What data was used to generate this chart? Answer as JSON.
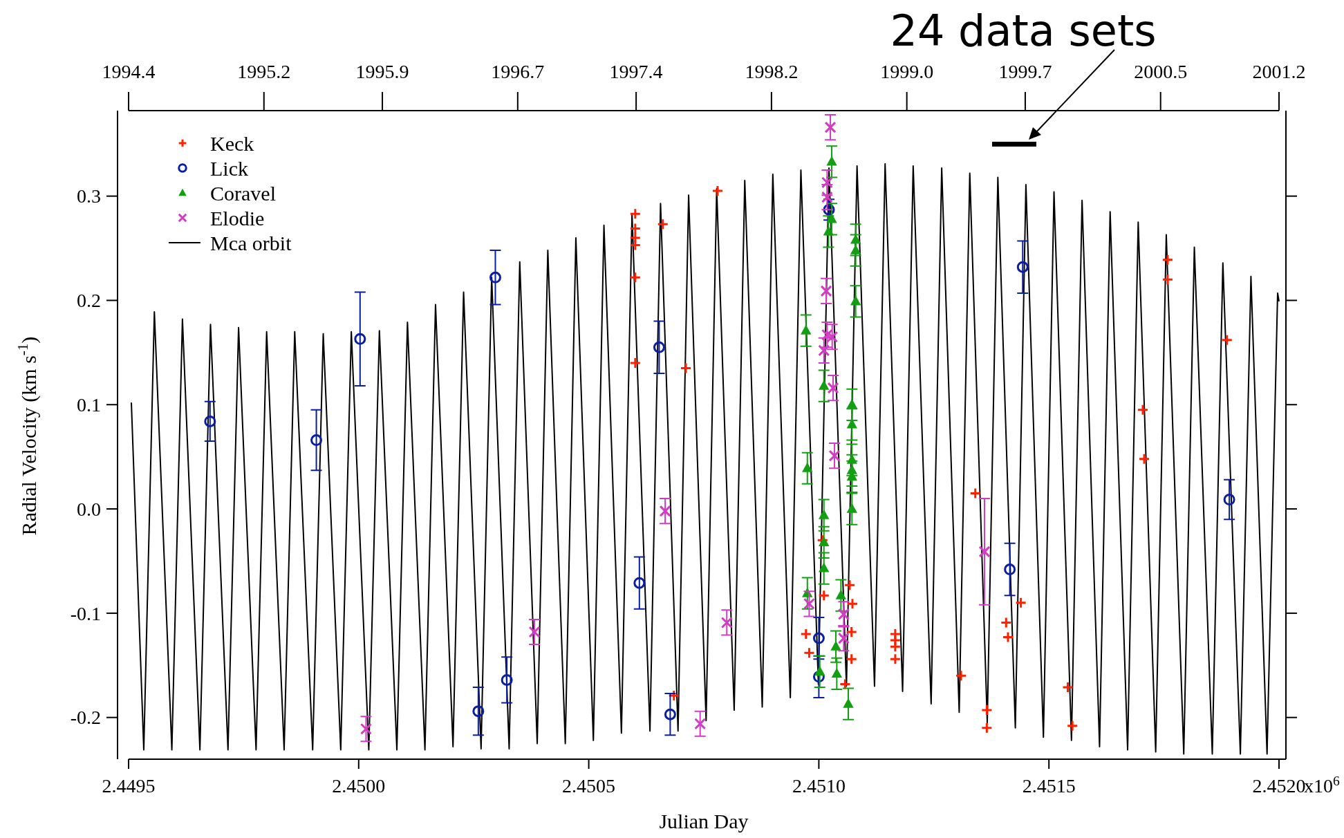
{
  "chart_data": {
    "type": "scatter",
    "xlabel": "Julian Day",
    "ylabel": "Radial Velocity (km s$^{-1}$)",
    "xlim": [
      2.4495,
      2.452
    ],
    "xticks": [
      {
        "value": 2.4495,
        "label": "2.4495"
      },
      {
        "value": 2.45,
        "label": "2.4500"
      },
      {
        "value": 2.4505,
        "label": "2.4505"
      },
      {
        "value": 2.451,
        "label": "2.4510"
      },
      {
        "value": 2.4515,
        "label": "2.4515"
      },
      {
        "value": 2.452,
        "label": "2.4520"
      }
    ],
    "x2lim": [
      1994.4,
      2001.2
    ],
    "x2ticks": [
      1994.4,
      1995.2,
      1995.9,
      1996.7,
      1997.4,
      1998.2,
      {
        "value": 1999,
        "label": "1999.0"
      },
      1999.7,
      2000.5,
      2001.2
    ],
    "ylim": [
      -0.24,
      0.38
    ],
    "yticks": [
      -0.2,
      -0.1,
      {
        "value": 0,
        "label": "0.0"
      },
      0.1,
      0.2,
      0.3
    ],
    "grid": false,
    "legend": "top left",
    "annotations": [
      "24 data sets",
      "x10$^{6}$"
    ],
    "series": [
      {
        "name": "Keck",
        "marker": "cross",
        "color": "#ff2000",
        "x": [
          2.450601,
          2.450601,
          2.450601,
          2.450601,
          2.450601,
          2.450601,
          2.450661,
          2.450685,
          2.450711,
          2.45078,
          2.450972,
          2.450979,
          2.451008,
          2.451011,
          2.451057,
          2.451067,
          2.451071,
          2.451071,
          2.451073,
          2.451166,
          2.451166,
          2.451166,
          2.451166,
          2.451309,
          2.45134,
          2.451365,
          2.451365,
          2.451407,
          2.451411,
          2.451439,
          2.451541,
          2.451551,
          2.451704,
          2.451707,
          2.451758,
          2.451758,
          2.451887
        ],
        "values": [
          0.283,
          0.269,
          0.26,
          0.253,
          0.222,
          0.14,
          0.273,
          -0.179,
          0.135,
          0.305,
          -0.12,
          -0.138,
          -0.03,
          -0.083,
          -0.168,
          -0.073,
          -0.118,
          -0.144,
          -0.091,
          -0.12,
          -0.126,
          -0.132,
          -0.144,
          -0.16,
          0.015,
          -0.193,
          -0.21,
          -0.109,
          -0.123,
          -0.09,
          -0.171,
          -0.208,
          0.095,
          0.048,
          0.239,
          0.22,
          0.162
        ]
      },
      {
        "name": "Lick",
        "marker": "circle",
        "color": "#0a1ea0",
        "x": [
          2.449677,
          2.449908,
          2.450003,
          2.45026,
          2.450297,
          2.450322,
          2.45061,
          2.450653,
          2.450677,
          2.451,
          2.451,
          2.451022,
          2.451415,
          2.451443,
          2.451892
        ],
        "values": [
          0.084,
          0.066,
          0.163,
          -0.194,
          0.222,
          -0.164,
          -0.071,
          0.155,
          -0.197,
          -0.124,
          -0.161,
          0.287,
          -0.058,
          0.232,
          0.009
        ],
        "errors": [
          0.019,
          0.029,
          0.045,
          0.023,
          0.026,
          0.022,
          0.025,
          0.025,
          0.02,
          0.02,
          0.02,
          0.01,
          0.025,
          0.025,
          0.019
        ]
      },
      {
        "name": "Coravel",
        "marker": "triangle",
        "color": "#12a012",
        "x": [
          2.450972,
          2.450975,
          2.450975,
          2.451002,
          2.451011,
          2.451011,
          2.451011,
          2.451011,
          2.451021,
          2.451028,
          2.451028,
          2.451037,
          2.451039,
          2.451048,
          2.451064,
          2.451072,
          2.451072,
          2.451072,
          2.451072,
          2.451072,
          2.451072,
          2.45108,
          2.45108,
          2.45108
        ],
        "values": [
          0.171,
          0.039,
          -0.081,
          -0.156,
          0.118,
          -0.006,
          -0.032,
          -0.057,
          0.266,
          0.278,
          0.333,
          -0.132,
          -0.158,
          -0.083,
          -0.187,
          0.1,
          0.081,
          0.047,
          0.037,
          0.031,
          0,
          0.258,
          0.248,
          0.199
        ],
        "errors": [
          0.015,
          0.015,
          0.015,
          0.015,
          0.015,
          0.015,
          0.015,
          0.015,
          0.015,
          0.015,
          0.015,
          0.015,
          0.015,
          0.015,
          0.015,
          0.015,
          0.015,
          0.015,
          0.015,
          0.015,
          0.015,
          0.015,
          0.015,
          0.015
        ]
      },
      {
        "name": "Elodie",
        "marker": "x",
        "color": "#d23cc3",
        "x": [
          2.450016,
          2.450382,
          2.450666,
          2.450742,
          2.4508,
          2.450979,
          2.451011,
          2.451016,
          2.451018,
          2.451018,
          2.451018,
          2.451025,
          2.451029,
          2.451031,
          2.451034,
          2.451054,
          2.451054,
          2.45136
        ],
        "values": [
          -0.211,
          -0.118,
          -0.002,
          -0.206,
          -0.109,
          -0.091,
          0.152,
          0.209,
          0.313,
          0.299,
          0.167,
          0.366,
          0.165,
          0.116,
          0.051,
          -0.101,
          -0.124,
          -0.041
        ],
        "errors": [
          0.012,
          0.012,
          0.012,
          0.012,
          0.012,
          0.012,
          0.012,
          0.012,
          0.012,
          0.012,
          0.012,
          0.012,
          0.012,
          0.012,
          0.012,
          0.012,
          0.012,
          0.051
        ]
      },
      {
        "name": "Mca orbit",
        "type": "line",
        "marker": "none",
        "line_style": "solid",
        "color": "#000000",
        "x": [
          2.449506,
          2.449533,
          2.449556,
          2.449594,
          2.449617,
          2.449655,
          2.449678,
          2.449716,
          2.449739,
          2.449777,
          2.4498,
          2.449838,
          2.449861,
          2.4499,
          2.449923,
          2.449961,
          2.449984,
          2.450022,
          2.450045,
          2.450083,
          2.450106,
          2.450144,
          2.450167,
          2.450205,
          2.450228,
          2.450266,
          2.450289,
          2.450327,
          2.45035,
          2.450388,
          2.450411,
          2.450449,
          2.450472,
          2.45051,
          2.450533,
          2.450571,
          2.450594,
          2.450633,
          2.450656,
          2.450694,
          2.450717,
          2.450755,
          2.450778,
          2.450816,
          2.450839,
          2.450877,
          2.4509,
          2.450938,
          2.450961,
          2.450999,
          2.451022,
          2.45106,
          2.451083,
          2.451121,
          2.451144,
          2.451182,
          2.451205,
          2.451244,
          2.451267,
          2.451305,
          2.451328,
          2.451366,
          2.451389,
          2.451427,
          2.45145,
          2.451488,
          2.451511,
          2.451549,
          2.451572,
          2.45161,
          2.451633,
          2.451671,
          2.451694,
          2.451732,
          2.451755,
          2.451793,
          2.451816,
          2.451855,
          2.451878,
          2.451916,
          2.451939,
          2.451974,
          2.451997,
          2.452
        ],
        "values": [
          0.102,
          -0.231,
          0.189,
          -0.231,
          0.182,
          -0.231,
          0.177,
          -0.231,
          0.174,
          -0.231,
          0.17,
          -0.231,
          0.17,
          -0.231,
          0.168,
          -0.231,
          0.17,
          -0.231,
          0.171,
          -0.231,
          0.179,
          -0.231,
          0.196,
          -0.228,
          0.208,
          -0.23,
          0.222,
          -0.23,
          0.237,
          -0.225,
          0.248,
          -0.225,
          0.26,
          -0.222,
          0.272,
          -0.215,
          0.283,
          -0.213,
          0.293,
          -0.213,
          0.301,
          -0.203,
          0.307,
          -0.193,
          0.315,
          -0.19,
          0.321,
          -0.181,
          0.325,
          -0.168,
          0.327,
          -0.17,
          0.329,
          -0.17,
          0.331,
          -0.175,
          0.329,
          -0.187,
          0.327,
          -0.195,
          0.322,
          -0.205,
          0.318,
          -0.21,
          0.311,
          -0.219,
          0.304,
          -0.222,
          0.296,
          -0.228,
          0.285,
          -0.231,
          0.275,
          -0.233,
          0.263,
          -0.235,
          0.251,
          -0.235,
          0.236,
          -0.235,
          0.223,
          -0.235,
          0.207,
          0.199
        ]
      }
    ]
  }
}
